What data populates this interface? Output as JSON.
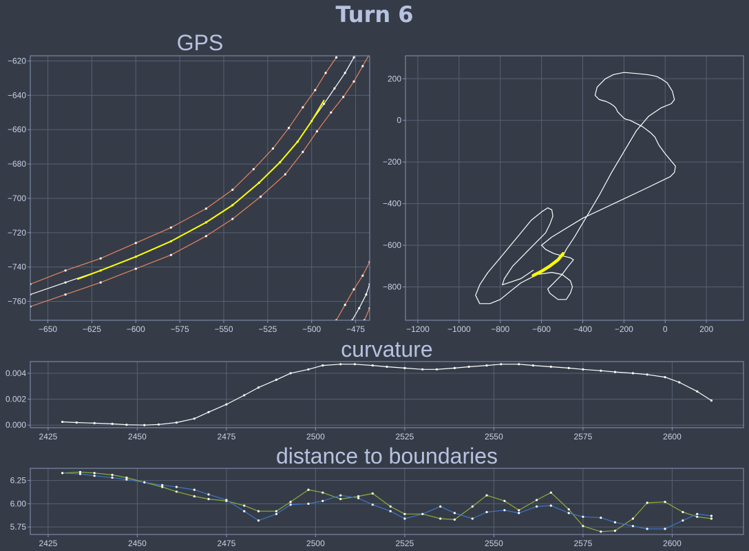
{
  "figure": {
    "suptitle": "Turn 6"
  },
  "colors": {
    "background": "#353c48",
    "grid": "#586173",
    "frame": "#8793b6",
    "text": "#b6c2df",
    "tick": "#c9d1e4",
    "line": "#ffffff",
    "highlight": "#ffff00",
    "boundary": "#e8855c",
    "dist_left": "#8fae3b",
    "dist_right": "#3d76c9"
  },
  "chart_data": [
    {
      "id": "gps",
      "type": "line",
      "title": "GPS",
      "xlabel": "",
      "ylabel": "",
      "xlim": [
        -660,
        -467
      ],
      "ylim": [
        -771,
        -617
      ],
      "xticks": [
        -650,
        -625,
        -600,
        -575,
        -550,
        -525,
        -500,
        -475
      ],
      "yticks": [
        -620,
        -640,
        -660,
        -680,
        -700,
        -720,
        -740,
        -760
      ],
      "grid": true,
      "series": [
        {
          "role": "centerline",
          "color": "#ffffff",
          "markers": true,
          "x": [
            -660,
            -640,
            -620,
            -600,
            -580,
            -560,
            -545,
            -530,
            -518,
            -508,
            -500,
            -493,
            -487,
            -481,
            -476,
            -471
          ],
          "y": [
            -756,
            -749,
            -742,
            -734,
            -725,
            -714,
            -704,
            -691,
            -679,
            -667,
            -655,
            -645,
            -636,
            -627,
            -618,
            -609
          ]
        },
        {
          "role": "boundary",
          "color": "#e8855c",
          "markers": true,
          "x": [
            -660,
            -640,
            -620,
            -600,
            -580,
            -560,
            -545,
            -533,
            -522,
            -513,
            -505,
            -498,
            -492,
            -486,
            -481,
            -476
          ],
          "y": [
            -750,
            -742,
            -735,
            -726,
            -717,
            -706,
            -695,
            -683,
            -671,
            -659,
            -647,
            -637,
            -627,
            -618,
            -609,
            -600
          ]
        },
        {
          "role": "boundary",
          "color": "#e8855c",
          "markers": true,
          "x": [
            -660,
            -640,
            -620,
            -600,
            -580,
            -560,
            -545,
            -529,
            -515,
            -505,
            -497,
            -489,
            -482,
            -476,
            -471,
            -466
          ],
          "y": [
            -763,
            -756,
            -749,
            -741,
            -733,
            -722,
            -712,
            -699,
            -686,
            -673,
            -661,
            -650,
            -641,
            -632,
            -623,
            -614
          ]
        },
        {
          "role": "highlight",
          "color": "#ffff00",
          "markers": false,
          "x": [
            -633,
            -620,
            -600,
            -580,
            -560,
            -545,
            -530,
            -518,
            -508,
            -500,
            -493
          ],
          "y": [
            -747,
            -742,
            -734,
            -725,
            -714,
            -704,
            -691,
            -679,
            -667,
            -655,
            -643
          ]
        },
        {
          "role": "boundary",
          "color": "#e8855c",
          "markers": true,
          "x": [
            -486,
            -481,
            -476,
            -471,
            -467
          ],
          "y": [
            -771,
            -762,
            -753,
            -745,
            -737
          ]
        },
        {
          "role": "centerline",
          "color": "#ffffff",
          "markers": true,
          "x": [
            -477,
            -473,
            -469,
            -467
          ],
          "y": [
            -771,
            -764,
            -756,
            -750
          ]
        },
        {
          "role": "boundary",
          "color": "#e8855c",
          "markers": true,
          "x": [
            -470,
            -467
          ],
          "y": [
            -771,
            -764
          ]
        }
      ]
    },
    {
      "id": "track",
      "type": "line",
      "title": "",
      "xlabel": "",
      "ylabel": "",
      "xlim": [
        -1260,
        380
      ],
      "ylim": [
        -960,
        310
      ],
      "xticks": [
        -1200,
        -1000,
        -800,
        -600,
        -400,
        -200,
        0,
        200
      ],
      "yticks": [
        200,
        0,
        -200,
        -400,
        -600,
        -800
      ],
      "grid": true,
      "series": [
        {
          "role": "track",
          "color": "#ffffff",
          "markers": false,
          "x": [
            -490,
            -480,
            -440,
            -380,
            -320,
            -260,
            -200,
            -140,
            -80,
            -20,
            30,
            45,
            35,
            10,
            -20,
            -40,
            -60,
            -90,
            -140,
            -200,
            -250,
            -290,
            -330,
            -340,
            -320,
            -285,
            -265,
            -250,
            -240,
            -230,
            -210,
            -200,
            -190,
            -170,
            -150,
            -110,
            -70,
            -50,
            -40,
            -30,
            0,
            50,
            45,
            25,
            -100,
            -250,
            -400,
            -550,
            -600,
            -580,
            -560,
            -540,
            -500,
            -460,
            -445,
            -470,
            -500,
            -540,
            -560,
            -570,
            -560,
            -520,
            -480,
            -460,
            -450,
            -460,
            -500,
            -550,
            -620,
            -700,
            -750,
            -800,
            -850,
            -900,
            -920,
            -900,
            -860,
            -800,
            -750,
            -700,
            -650,
            -600,
            -570,
            -550,
            -545,
            -560,
            -580,
            -620,
            -660,
            -700,
            -740,
            -760,
            -780,
            -790,
            -760,
            -700,
            -640
          ],
          "y": [
            -640,
            -620,
            -560,
            -460,
            -360,
            -250,
            -150,
            -50,
            20,
            60,
            80,
            100,
            140,
            180,
            200,
            210,
            215,
            220,
            225,
            230,
            220,
            200,
            160,
            120,
            100,
            90,
            80,
            70,
            60,
            40,
            20,
            10,
            5,
            0,
            -10,
            -30,
            -60,
            -80,
            -100,
            -120,
            -160,
            -220,
            -250,
            -270,
            -330,
            -400,
            -470,
            -560,
            -600,
            -620,
            -630,
            -640,
            -650,
            -660,
            -670,
            -700,
            -740,
            -780,
            -800,
            -810,
            -830,
            -860,
            -860,
            -830,
            -800,
            -770,
            -740,
            -730,
            -740,
            -780,
            -820,
            -860,
            -880,
            -880,
            -840,
            -790,
            -730,
            -660,
            -600,
            -540,
            -480,
            -440,
            -420,
            -430,
            -460,
            -500,
            -540,
            -580,
            -620,
            -660,
            -700,
            -730,
            -760,
            -790,
            -780,
            -760,
            -720
          ]
        },
        {
          "role": "highlight",
          "color": "#ffff00",
          "markers": false,
          "x": [
            -640,
            -600,
            -560,
            -520,
            -495
          ],
          "y": [
            -745,
            -725,
            -700,
            -670,
            -640
          ]
        }
      ]
    },
    {
      "id": "curvature",
      "type": "line",
      "title": "curvature",
      "xlabel": "",
      "ylabel": "",
      "xlim": [
        2420,
        2620
      ],
      "ylim": [
        -0.0002,
        0.0049
      ],
      "xticks": [
        2425,
        2450,
        2475,
        2500,
        2525,
        2550,
        2575,
        2600
      ],
      "yticks": [
        0.004,
        0.002,
        0.0
      ],
      "ytick_labels": [
        "0.004",
        "0.002",
        "0.000"
      ],
      "grid": true,
      "series": [
        {
          "color": "#ffffff",
          "markers": true,
          "x": [
            2429,
            2433,
            2438,
            2443,
            2447,
            2452,
            2456,
            2461,
            2466,
            2470,
            2475,
            2480,
            2484,
            2489,
            2493,
            2498,
            2502,
            2507,
            2511,
            2516,
            2520,
            2525,
            2530,
            2534,
            2539,
            2543,
            2548,
            2552,
            2557,
            2561,
            2566,
            2571,
            2575,
            2580,
            2584,
            2589,
            2593,
            2598,
            2602,
            2607,
            2611
          ],
          "y": [
            0.00025,
            0.0002,
            0.00015,
            0.0001,
            3e-05,
            0.0,
            5e-05,
            0.0002,
            0.0005,
            0.001,
            0.0016,
            0.0023,
            0.0029,
            0.0035,
            0.004,
            0.0043,
            0.0046,
            0.0047,
            0.0047,
            0.0046,
            0.0045,
            0.0044,
            0.0043,
            0.0043,
            0.0044,
            0.0045,
            0.0046,
            0.0047,
            0.0047,
            0.0046,
            0.0045,
            0.0044,
            0.0043,
            0.0042,
            0.0041,
            0.004,
            0.0039,
            0.0037,
            0.0033,
            0.0026,
            0.0019
          ]
        }
      ]
    },
    {
      "id": "distance",
      "type": "line",
      "title": "distance to boundaries",
      "xlabel": "",
      "ylabel": "",
      "xlim": [
        2420,
        2620
      ],
      "ylim": [
        5.67,
        6.38
      ],
      "xticks": [
        2425,
        2450,
        2475,
        2500,
        2525,
        2550,
        2575,
        2600
      ],
      "yticks": [
        6.25,
        6.0,
        5.75
      ],
      "ytick_labels": [
        "6.25",
        "6.00",
        "5.75"
      ],
      "grid": true,
      "series": [
        {
          "color": "#8fae3b",
          "markers": true,
          "x": [
            2429,
            2434,
            2438,
            2443,
            2447,
            2452,
            2457,
            2461,
            2466,
            2470,
            2475,
            2480,
            2484,
            2489,
            2493,
            2498,
            2502,
            2507,
            2512,
            2516,
            2521,
            2525,
            2530,
            2535,
            2539,
            2544,
            2548,
            2553,
            2557,
            2562,
            2566,
            2571,
            2575,
            2580,
            2584,
            2589,
            2593,
            2598,
            2603,
            2607,
            2611
          ],
          "y": [
            6.33,
            6.34,
            6.33,
            6.31,
            6.28,
            6.23,
            6.18,
            6.13,
            6.08,
            6.05,
            6.03,
            5.98,
            5.92,
            5.92,
            6.02,
            6.15,
            6.12,
            6.05,
            6.08,
            6.11,
            5.97,
            5.89,
            5.89,
            5.84,
            5.83,
            5.97,
            6.09,
            6.03,
            5.93,
            6.04,
            6.12,
            5.94,
            5.76,
            5.7,
            5.71,
            5.84,
            6.01,
            6.02,
            5.91,
            5.86,
            5.84
          ]
        },
        {
          "color": "#3d76c9",
          "markers": true,
          "x": [
            2429,
            2434,
            2438,
            2443,
            2447,
            2452,
            2457,
            2461,
            2466,
            2470,
            2475,
            2480,
            2484,
            2489,
            2493,
            2498,
            2502,
            2507,
            2512,
            2516,
            2521,
            2525,
            2530,
            2535,
            2539,
            2544,
            2548,
            2553,
            2557,
            2562,
            2566,
            2571,
            2575,
            2580,
            2584,
            2589,
            2593,
            2598,
            2603,
            2607,
            2611
          ],
          "y": [
            6.33,
            6.32,
            6.3,
            6.28,
            6.26,
            6.23,
            6.2,
            6.18,
            6.15,
            6.1,
            6.04,
            5.92,
            5.82,
            5.89,
            5.99,
            6.0,
            6.03,
            6.09,
            6.06,
            5.99,
            5.92,
            5.84,
            5.89,
            5.97,
            5.9,
            5.84,
            5.91,
            5.93,
            5.9,
            5.97,
            5.98,
            5.9,
            5.86,
            5.85,
            5.8,
            5.76,
            5.73,
            5.73,
            5.82,
            5.89,
            5.87
          ]
        }
      ]
    }
  ]
}
